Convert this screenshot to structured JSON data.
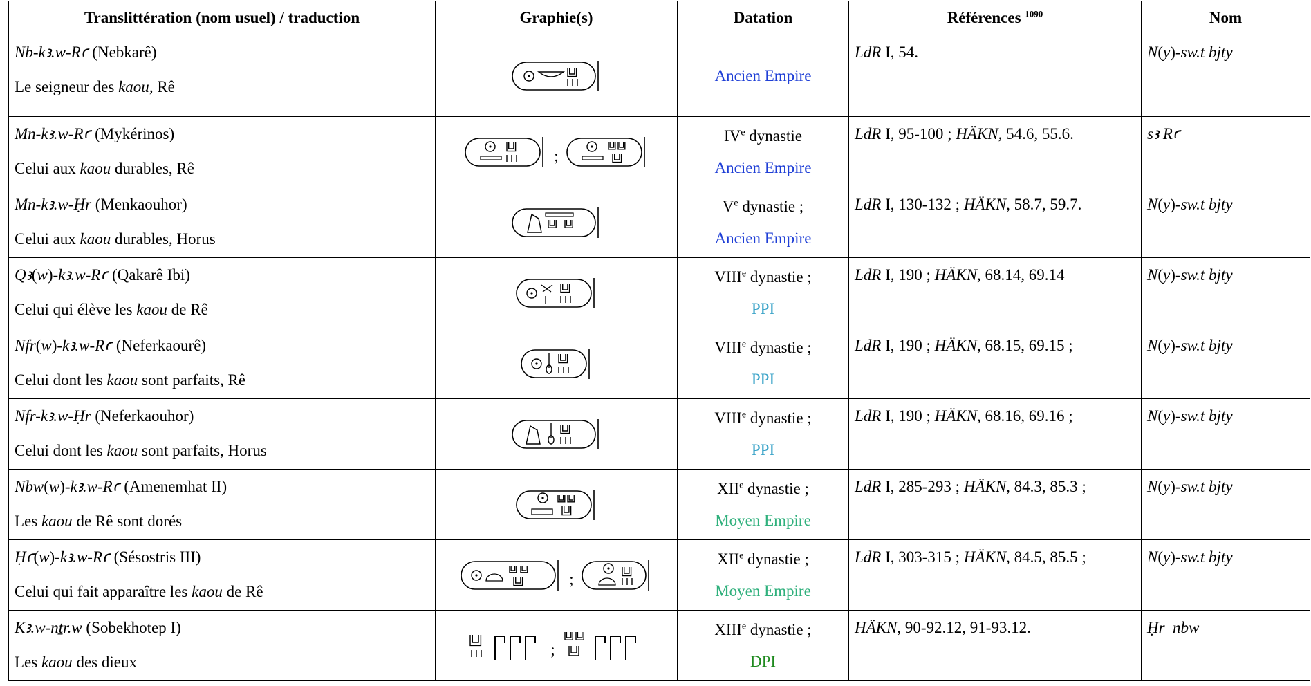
{
  "header": [
    [
      "Translittération (nom usuel) / traduction"
    ],
    [
      "Graphie(s)"
    ],
    [
      "Datation"
    ],
    [
      "Références ",
      {
        "sup": "1090"
      }
    ],
    [
      "Nom"
    ]
  ],
  "rows": [
    {
      "translit": [
        {
          "i": "Nb-kꜣ.w-Rꜥ"
        },
        " (Nebkarê)"
      ],
      "translation": [
        "Le seigneur des ",
        {
          "i": "kaou"
        },
        ", Rê"
      ],
      "datation": [
        {
          "text": [
            "Ancien Empire"
          ],
          "color": "#1f3fd6"
        }
      ],
      "references": [
        {
          "i": "LdR"
        },
        " I, 54."
      ],
      "nom": [
        {
          "i": "N"
        },
        "(",
        {
          "i": "y"
        },
        ")",
        {
          "i": "-sw.t bjty"
        }
      ]
    },
    {
      "translit": [
        {
          "i": "Mn-kꜣ.w-Rꜥ"
        },
        " (Mykérinos)"
      ],
      "translation": [
        "Celui aux ",
        {
          "i": "kaou"
        },
        " durables, Rê"
      ],
      "separator": ";",
      "datation": [
        {
          "text": [
            "IV",
            {
              "sup": "e"
            },
            " dynastie"
          ],
          "color": "#000000"
        },
        {
          "text": [
            "Ancien Empire"
          ],
          "color": "#1f3fd6"
        }
      ],
      "references": [
        {
          "i": "LdR"
        },
        " I, 95-100 ; ",
        {
          "i": "HÄKN"
        },
        ", 54.6, 55.6."
      ],
      "nom": [
        {
          "i": "sꜣ Rꜥ"
        }
      ]
    },
    {
      "translit": [
        {
          "i": "Mn-kꜣ.w-Ḥr"
        },
        " (Menkaouhor)"
      ],
      "translation": [
        "Celui aux ",
        {
          "i": "kaou"
        },
        " durables, Horus"
      ],
      "datation": [
        {
          "text": [
            "V",
            {
              "sup": "e"
            },
            " dynastie ;"
          ],
          "color": "#000000"
        },
        {
          "text": [
            "Ancien Empire"
          ],
          "color": "#1f3fd6"
        }
      ],
      "references": [
        {
          "i": "LdR"
        },
        " I, 130-132 ; ",
        {
          "i": "HÄKN"
        },
        ", 58.7, 59.7."
      ],
      "nom": [
        {
          "i": "N"
        },
        "(",
        {
          "i": "y"
        },
        ")",
        {
          "i": "-sw.t bjty"
        }
      ]
    },
    {
      "translit": [
        {
          "i": "Qꜣ"
        },
        "(",
        {
          "i": "w"
        },
        ")",
        {
          "i": "-kꜣ.w-Rꜥ"
        },
        " (Qakarê Ibi)"
      ],
      "translation": [
        "Celui qui élève les ",
        {
          "i": "kaou"
        },
        " de Rê"
      ],
      "datation": [
        {
          "text": [
            "VIII",
            {
              "sup": "e"
            },
            " dynastie ;"
          ],
          "color": "#000000"
        },
        {
          "text": [
            "PPI"
          ],
          "color": "#3aa3c8"
        }
      ],
      "references": [
        {
          "i": "LdR"
        },
        " I, 190 ; ",
        {
          "i": "HÄKN"
        },
        ", 68.14, 69.14"
      ],
      "nom": [
        {
          "i": "N"
        },
        "(",
        {
          "i": "y"
        },
        ")",
        {
          "i": "-sw.t bjty"
        }
      ]
    },
    {
      "translit": [
        {
          "i": "Nfr"
        },
        "(",
        {
          "i": "w"
        },
        ")",
        {
          "i": "-kꜣ.w-Rꜥ"
        },
        " (Neferkaourê)"
      ],
      "translation": [
        "Celui dont les ",
        {
          "i": "kaou"
        },
        " sont parfaits, Rê"
      ],
      "datation": [
        {
          "text": [
            "VIII",
            {
              "sup": "e"
            },
            " dynastie ;"
          ],
          "color": "#000000"
        },
        {
          "text": [
            "PPI"
          ],
          "color": "#3aa3c8"
        }
      ],
      "references": [
        {
          "i": "LdR"
        },
        " I, 190 ; ",
        {
          "i": "HÄKN"
        },
        ", 68.15, 69.15 ;"
      ],
      "nom": [
        {
          "i": "N"
        },
        "(",
        {
          "i": "y"
        },
        ")",
        {
          "i": "-sw.t bjty"
        }
      ]
    },
    {
      "translit": [
        {
          "i": "Nfr-kꜣ.w-Ḥr"
        },
        " (Neferkaouhor)"
      ],
      "translation": [
        "Celui dont les ",
        {
          "i": "kaou"
        },
        " sont parfaits, Horus"
      ],
      "datation": [
        {
          "text": [
            "VIII",
            {
              "sup": "e"
            },
            " dynastie ;"
          ],
          "color": "#000000"
        },
        {
          "text": [
            "PPI"
          ],
          "color": "#3aa3c8"
        }
      ],
      "references": [
        {
          "i": "LdR"
        },
        " I, 190 ; ",
        {
          "i": "HÄKN"
        },
        ", 68.16, 69.16 ;"
      ],
      "nom": [
        {
          "i": "N"
        },
        "(",
        {
          "i": "y"
        },
        ")",
        {
          "i": "-sw.t bjty"
        }
      ]
    },
    {
      "translit": [
        {
          "i": "Nbw"
        },
        "(",
        {
          "i": "w"
        },
        ")",
        {
          "i": "-kꜣ.w-Rꜥ"
        },
        " (Amenemhat II)"
      ],
      "translation": [
        "Les ",
        {
          "i": "kaou"
        },
        " de Rê sont dorés"
      ],
      "datation": [
        {
          "text": [
            "XII",
            {
              "sup": "e"
            },
            " dynastie ;"
          ],
          "color": "#000000"
        },
        {
          "text": [
            "Moyen Empire"
          ],
          "color": "#2fb07c"
        }
      ],
      "references": [
        {
          "i": "LdR"
        },
        " I, 285-293 ; ",
        {
          "i": "HÄKN"
        },
        ", 84.3, 85.3 ;"
      ],
      "nom": [
        {
          "i": "N"
        },
        "(",
        {
          "i": "y"
        },
        ")",
        {
          "i": "-sw.t bjty"
        }
      ]
    },
    {
      "translit": [
        {
          "i": "Ḥꜥ"
        },
        "(",
        {
          "i": "w"
        },
        ")",
        {
          "i": "-kꜣ.w-Rꜥ"
        },
        " (Sésostris III)"
      ],
      "translation": [
        "Celui qui fait apparaître les ",
        {
          "i": "kaou"
        },
        " de Rê"
      ],
      "separator": ";",
      "datation": [
        {
          "text": [
            "XII",
            {
              "sup": "e"
            },
            " dynastie ;"
          ],
          "color": "#000000"
        },
        {
          "text": [
            "Moyen Empire"
          ],
          "color": "#2fb07c"
        }
      ],
      "references": [
        {
          "i": "LdR"
        },
        " I, 303-315 ; ",
        {
          "i": "HÄKN"
        },
        ", 84.5, 85.5 ;"
      ],
      "nom": [
        {
          "i": "N"
        },
        "(",
        {
          "i": "y"
        },
        ")",
        {
          "i": "-sw.t bjty"
        }
      ]
    },
    {
      "translit": [
        {
          "i": "Kꜣ.w-nṯr.w"
        },
        " (Sobekhotep I)"
      ],
      "translation": [
        "Les ",
        {
          "i": "kaou"
        },
        " des dieux"
      ],
      "separator": ";",
      "datation": [
        {
          "text": [
            "XIII",
            {
              "sup": "e"
            },
            " dynastie ;"
          ],
          "color": "#000000"
        },
        {
          "text": [
            "DPI"
          ],
          "color": "#1f8a1f"
        }
      ],
      "references": [
        {
          "i": "HÄKN"
        },
        ", 90-92.12, 91-93.12."
      ],
      "nom": [
        {
          "i": "Ḥr  nbw"
        }
      ]
    }
  ]
}
